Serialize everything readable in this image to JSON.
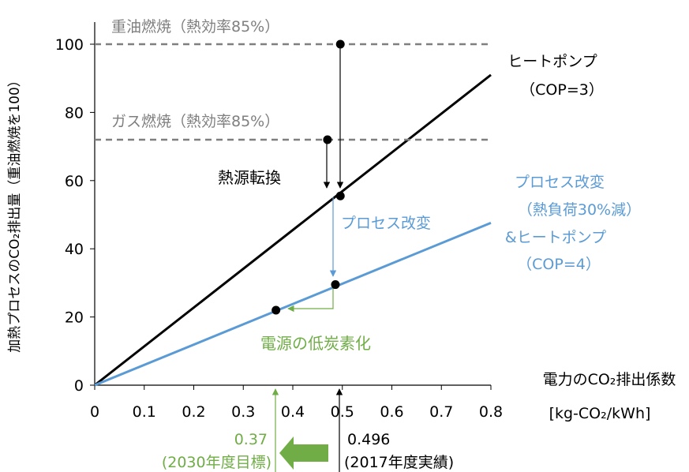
{
  "chart_data": {
    "type": "line",
    "ylabel": "加熱プロセスのCO₂排出量（重油燃焼を100）",
    "xlabel": "電力のCO₂排出係数",
    "xunit": "[kg-CO₂/kWh]",
    "xlim": [
      0,
      0.8
    ],
    "ylim": [
      0,
      105
    ],
    "xticks": [
      "0",
      "0.1",
      "0.2",
      "0.3",
      "0.4",
      "0.5",
      "0.6",
      "0.7",
      "0.8"
    ],
    "yticks": [
      "0",
      "20",
      "40",
      "60",
      "80",
      "100"
    ],
    "grid": false,
    "series": [
      {
        "name": "ヒートポンプ（COP=3）",
        "label_lines": [
          "ヒートポンプ",
          "（COP=3）"
        ],
        "color": "#000000",
        "x": [
          0,
          0.8
        ],
        "y": [
          0,
          91
        ]
      },
      {
        "name": "プロセス改変（熱負荷30%減）&ヒートポンプ（COP=4）",
        "label_lines": [
          "プロセス改変",
          "（熱負荷30%減）",
          "&ヒートポンプ",
          "（COP=4）"
        ],
        "color": "#5b9bd5",
        "x": [
          0,
          0.8
        ],
        "y": [
          0,
          47.6
        ]
      },
      {
        "name": "重油燃焼（熱効率85%）",
        "color": "#7f7f7f",
        "dashed": true,
        "x": [
          0,
          0.8
        ],
        "y": [
          100,
          100
        ]
      },
      {
        "name": "ガス燃焼（熱効率85%）",
        "color": "#7f7f7f",
        "dashed": true,
        "x": [
          0,
          0.8
        ],
        "y": [
          72,
          72
        ]
      }
    ],
    "points": [
      {
        "x": 0.496,
        "y": 100
      },
      {
        "x": 0.47,
        "y": 72
      },
      {
        "x": 0.496,
        "y": 55.5
      },
      {
        "x": 0.486,
        "y": 29.5
      },
      {
        "x": 0.366,
        "y": 22
      }
    ],
    "annotations": {
      "fuel_switch": "熱源転換",
      "process_change": "プロセス改変",
      "decarbonize": "電源の低炭素化",
      "current_value": "0.496",
      "current_label": "(2017年度実績)",
      "target_value": "0.37",
      "target_label": "(2030年度目標)"
    },
    "colors": {
      "heat_pump": "#000000",
      "process": "#5b9bd5",
      "decarb": "#70ad47",
      "fuel": "#7f7f7f"
    }
  }
}
